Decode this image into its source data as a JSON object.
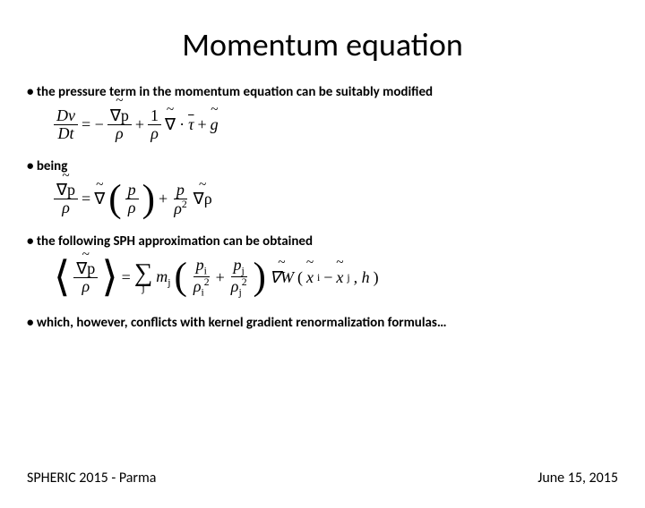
{
  "title": "Momentum equation",
  "bullets": {
    "b1": "• the pressure term in the momentum equation can be suitably modified",
    "b2": "• being",
    "b3": "• the following SPH approximation can be obtained",
    "b4": "• which, however, conflicts with kernel gradient renormalization formulas…"
  },
  "footer": {
    "left": "SPHERIC 2015 - Parma",
    "right": "June 15, 2015"
  },
  "eq1": {
    "lhs_num": "Dv",
    "lhs_den": "Dt",
    "t1_num": "∇p",
    "t1_den": "ρ",
    "t2_num": "1",
    "t2_den": "ρ",
    "nabla": "∇",
    "dot": "·",
    "tau": "τ",
    "plus": "+",
    "g": "g",
    "minus": "= −"
  },
  "eq2": {
    "lhs_num": "∇p",
    "lhs_den": "ρ",
    "eq": "=",
    "nabla": "∇",
    "inner1_num": "p",
    "inner1_den": "ρ",
    "plus": "+",
    "t2_num": "p",
    "t2_den_base": "ρ",
    "t2_den_exp": "2",
    "grad_rho": "∇ρ"
  },
  "eq3": {
    "lhs_num": "∇p",
    "lhs_den": "ρ",
    "eq": "=",
    "sum": "∑",
    "sum_sub": "j",
    "mj": "m",
    "mj_sub": "j",
    "f1_num": "p",
    "f1_num_sub": "i",
    "f1_den": "ρ",
    "f1_den_sub": "i",
    "f1_den_exp": "2",
    "plus": "+",
    "f2_num": "p",
    "f2_num_sub": "j",
    "f2_den": "ρ",
    "f2_den_sub": "j",
    "f2_den_exp": "2",
    "gradW": "∇W",
    "lpar": "(",
    "rpar": ")",
    "xi": "x",
    "xi_sub": "i",
    "minus": "−",
    "xj": "x",
    "xj_sub": "j",
    "comma_h": ", h"
  },
  "style": {
    "title_fontsize": 36,
    "bullet_fontsize": 15,
    "eq_fontsize": 18,
    "footer_fontsize": 16,
    "text_color": "#000000",
    "background_color": "#ffffff",
    "font_family_body": "Calibri",
    "font_family_math": "Times New Roman"
  }
}
